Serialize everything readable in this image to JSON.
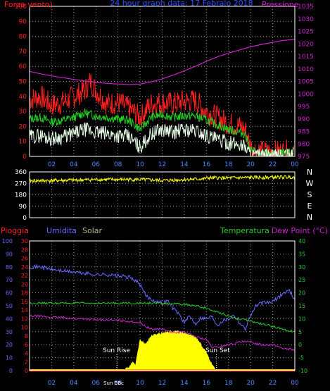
{
  "title": "24 hour graph data: 17 Febraio 2018",
  "colors": {
    "background": "#000000",
    "frame": "#ffffff",
    "grid": "#9a9a9a",
    "wind_speed": "#ff2020",
    "wind_avg": "#22cc22",
    "wind_gust": "#e8ffe8",
    "pressure": "#cc22cc",
    "direction": "#ffff00",
    "rain": "#ff2020",
    "humidity": "#6a6aff",
    "solar": "#ffff00",
    "temperature": "#22cc22",
    "dewpoint": "#cc22cc",
    "solar_label": "#b8b888"
  },
  "x_tick_labels": [
    "02",
    "04",
    "06",
    "08",
    "10",
    "12",
    "14",
    "16",
    "18",
    "20",
    "22",
    "00"
  ],
  "top": {
    "left_label": "Forza vento)",
    "right_label": "Pressione",
    "left_ticks": [
      "0",
      "10",
      "20",
      "30",
      "40",
      "50",
      "60",
      "70",
      "80",
      "90",
      "100"
    ],
    "right_ticks": [
      "975",
      "980",
      "985",
      "990",
      "995",
      "1000",
      "1005",
      "1010",
      "1015",
      "1020",
      "1025",
      "1030",
      "1035"
    ]
  },
  "mid": {
    "ticks": [
      "0",
      "90",
      "180",
      "270",
      "360"
    ],
    "compass": [
      "N",
      "W",
      "S",
      "E",
      "N"
    ]
  },
  "bottom": {
    "label_rain": "Pioggia",
    "label_humidity": "Umidita",
    "label_solar": "Solar",
    "label_temperature": "Temperatura",
    "label_dewpoint": "Dew Point (°C)",
    "rain_ticks": [
      "0",
      "2",
      "4",
      "6",
      "8",
      "10",
      "12",
      "14",
      "16",
      "18",
      "20",
      "22",
      "24",
      "26",
      "28",
      "30"
    ],
    "hum_ticks": [
      "0",
      "10",
      "20",
      "30",
      "40",
      "50",
      "60",
      "70",
      "80",
      "90",
      "100"
    ],
    "temp_ticks": [
      "-10",
      "-5",
      "0",
      "5",
      "10",
      "15",
      "20",
      "25",
      "30",
      "35",
      "40"
    ],
    "annotations": {
      "sun_rise": "Sun Rise",
      "sun_set": "Sun Set",
      "sun_bbc": "Sun BBc"
    }
  },
  "chart_data": [
    {
      "type": "line",
      "title": "24 hour graph data: 17 Febraio 2018",
      "xlabel": "",
      "ylabel": "Forza vento)",
      "y2label": "Pressione",
      "x_unit": "hour",
      "xlim": [
        0,
        24
      ],
      "ylim": [
        0,
        100
      ],
      "y2lim": [
        975,
        1035
      ],
      "grid": true,
      "series": [
        {
          "name": "",
          "axis": "left",
          "color": "#ff2020",
          "x": [
            0,
            1,
            2,
            3,
            4,
            5,
            5.5,
            6,
            7,
            8,
            9,
            10,
            11,
            12,
            13,
            14,
            15,
            16,
            17,
            18,
            19,
            19.5,
            20,
            20.5,
            21,
            22,
            23,
            23.9
          ],
          "y": [
            38,
            40,
            34,
            36,
            40,
            44,
            50,
            44,
            35,
            36,
            32,
            26,
            35,
            36,
            35,
            37,
            37,
            30,
            26,
            22,
            20,
            18,
            6,
            4,
            3,
            3,
            3,
            4
          ]
        },
        {
          "name": "",
          "axis": "left",
          "color": "#22cc22",
          "x": [
            0,
            1,
            2,
            3,
            4,
            5,
            6,
            7,
            8,
            9,
            10,
            11,
            12,
            13,
            14,
            15,
            16,
            17,
            18,
            19,
            19.5,
            20,
            21,
            22,
            23,
            23.9
          ],
          "y": [
            25,
            26,
            23,
            24,
            26,
            29,
            27,
            26,
            25,
            24,
            18,
            26,
            28,
            26,
            27,
            27,
            24,
            21,
            18,
            16,
            15,
            4,
            2,
            2,
            2,
            2
          ]
        },
        {
          "name": "",
          "axis": "left",
          "color": "#e8ffe8",
          "x": [
            0,
            1,
            2,
            3,
            4,
            5,
            6,
            7,
            8,
            9,
            10,
            11,
            12,
            13,
            14,
            15,
            16,
            17,
            18,
            19,
            19.5,
            20,
            21,
            22,
            23,
            23.9
          ],
          "y": [
            13,
            14,
            12,
            13,
            15,
            18,
            16,
            15,
            14,
            13,
            6,
            15,
            18,
            16,
            18,
            17,
            14,
            11,
            9,
            8,
            7,
            1,
            0,
            0,
            0,
            1
          ]
        },
        {
          "name": "",
          "axis": "right",
          "color": "#cc22cc",
          "x": [
            0,
            1,
            2,
            3,
            4,
            5,
            6,
            7,
            8,
            9,
            10,
            11,
            12,
            13,
            14,
            15,
            16,
            17,
            18,
            19,
            20,
            21,
            22,
            23,
            24
          ],
          "y": [
            1009,
            1008,
            1007.2,
            1006.5,
            1005.8,
            1005.2,
            1004.6,
            1004.2,
            1003.9,
            1003.8,
            1003.9,
            1004.8,
            1006,
            1007.5,
            1009.2,
            1011,
            1013,
            1014.8,
            1016.3,
            1017.6,
            1018.8,
            1019.8,
            1020.6,
            1021.4,
            1021.8
          ]
        }
      ]
    },
    {
      "type": "line",
      "x_unit": "hour",
      "xlim": [
        0,
        24
      ],
      "ylim": [
        0,
        360
      ],
      "grid": true,
      "series": [
        {
          "name": "",
          "color": "#ffff00",
          "x": [
            0,
            2,
            4,
            6,
            8,
            10,
            12,
            14,
            15.8,
            16,
            18,
            20,
            22,
            24
          ],
          "y": [
            290,
            292,
            295,
            300,
            300,
            300,
            292,
            300,
            305,
            312,
            312,
            315,
            318,
            320
          ]
        }
      ]
    },
    {
      "type": "area",
      "xlabel": "",
      "x_unit": "hour",
      "xlim": [
        0,
        24
      ],
      "ylim": [
        0,
        100
      ],
      "grid": true,
      "series": [
        {
          "name": "Umidita",
          "axis": "humidity",
          "color": "#6a6aff",
          "x": [
            0,
            1,
            2,
            3,
            4,
            5,
            6,
            7,
            8,
            9,
            9.5,
            10,
            10.5,
            11,
            12,
            12.5,
            13,
            13.5,
            14,
            14.5,
            15,
            15.5,
            16,
            16.5,
            17,
            17.5,
            18,
            18.5,
            19,
            19.5,
            20,
            20.5,
            21,
            22,
            23,
            23.5,
            24
          ],
          "y": [
            80,
            80,
            78,
            77,
            76,
            75,
            74,
            74,
            73,
            72,
            70,
            66,
            58,
            55,
            52,
            54,
            48,
            44,
            37,
            42,
            36,
            41,
            40,
            42,
            35,
            39,
            40,
            43,
            37,
            32,
            43,
            50,
            52,
            53,
            60,
            62,
            55
          ]
        },
        {
          "name": "Solar",
          "axis": "humidity",
          "color": "#ffff00",
          "fill": true,
          "x": [
            7.9,
            8.5,
            9,
            9.3,
            9.6,
            10,
            10.5,
            11,
            11.5,
            12,
            12.5,
            13,
            13.5,
            14,
            14.5,
            15,
            15.5,
            16,
            16.3,
            16.6,
            16.9
          ],
          "y": [
            0,
            0,
            3,
            6,
            5,
            24,
            20,
            27,
            28,
            29,
            30,
            30,
            30,
            29,
            28,
            26,
            20,
            14,
            8,
            3,
            0
          ]
        },
        {
          "name": "Temperatura",
          "axis": "temperature",
          "color": "#22cc22",
          "x": [
            0,
            2,
            4,
            6,
            8,
            10,
            11,
            12,
            13,
            14,
            15,
            16,
            17,
            17.5,
            18,
            19,
            20,
            21,
            22,
            23,
            23.5,
            24
          ],
          "y": [
            16,
            16,
            16,
            16,
            16,
            16,
            16,
            15.8,
            15.7,
            15.5,
            15,
            14,
            12.5,
            12,
            11,
            10,
            9,
            8,
            7,
            6,
            5,
            5.5
          ]
        },
        {
          "name": "Dew Point",
          "axis": "temperature",
          "color": "#cc22cc",
          "x": [
            0,
            1,
            2,
            3,
            4,
            5,
            6,
            7,
            8,
            9,
            10,
            10.5,
            11,
            12,
            13,
            14,
            15,
            16,
            16.5,
            17,
            18,
            19,
            20,
            21,
            22,
            23,
            24
          ],
          "y": [
            11,
            11,
            10.5,
            10.5,
            10,
            10,
            9.5,
            9.5,
            9.3,
            9,
            8.5,
            7,
            6,
            6,
            4.5,
            5,
            3,
            2,
            -1,
            -1,
            0,
            1,
            1,
            0,
            0,
            -1.5,
            -2
          ]
        },
        {
          "name": "Pioggia",
          "axis": "rain",
          "color": "#ff2020",
          "x": [
            0,
            24
          ],
          "y": [
            0,
            0
          ]
        }
      ]
    }
  ]
}
